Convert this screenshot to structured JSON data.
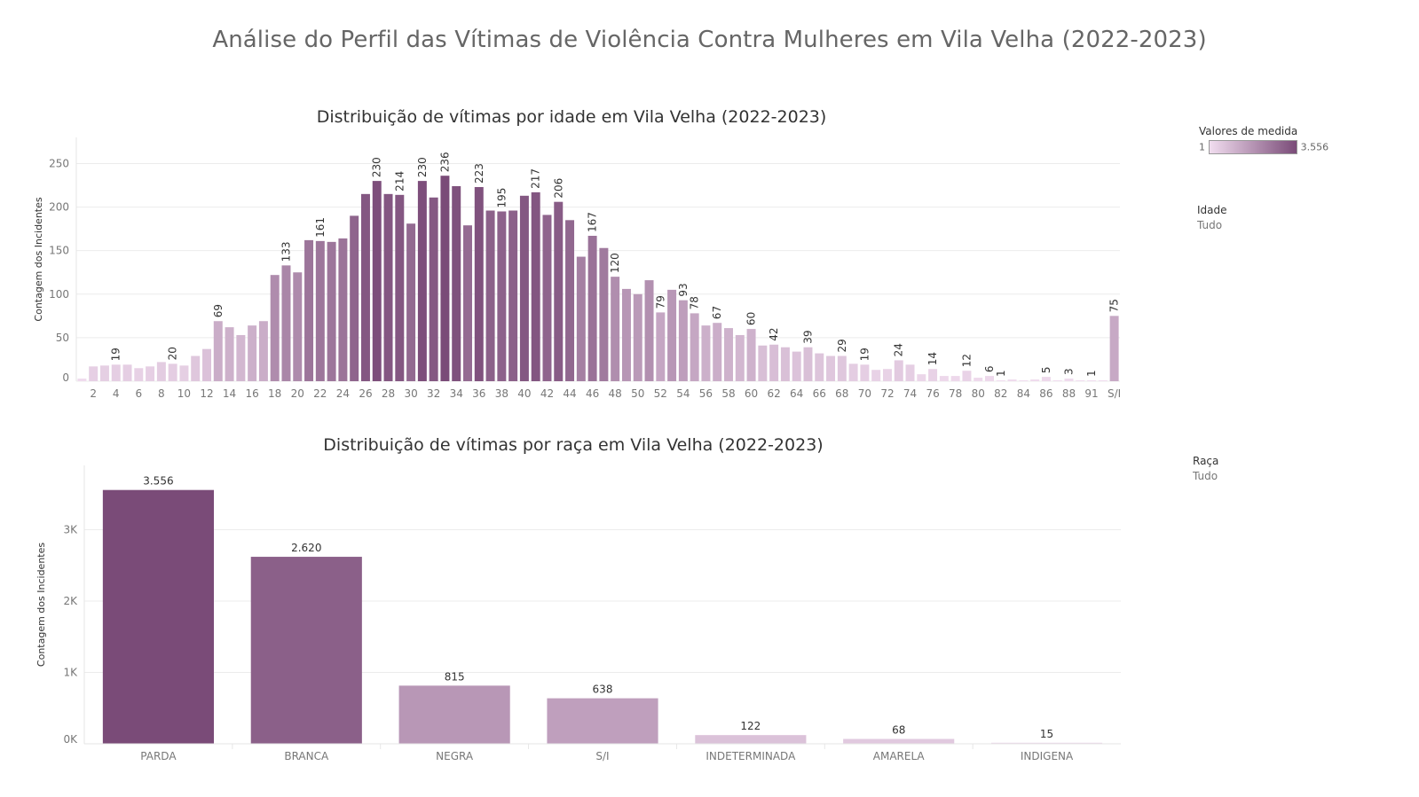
{
  "page": {
    "title": "Análise do Perfil das Vítimas de Violência Contra Mulheres em Vila Velha (2022-2023)"
  },
  "legend": {
    "measure_title": "Valores de medida",
    "min_label": "1",
    "max_label": "3.556",
    "color_low": "#f1ddef",
    "color_high": "#7a4b78"
  },
  "filters": {
    "age": {
      "title": "Idade",
      "value": "Tudo"
    },
    "race": {
      "title": "Raça",
      "value": "Tudo"
    }
  },
  "chart_data": [
    {
      "type": "bar",
      "title": "Distribuição de vítimas por idade em Vila Velha (2022-2023)",
      "xlabel": "",
      "ylabel": "Contagem dos Incidentes",
      "ylim": [
        0,
        280
      ],
      "yticks": [
        0,
        50,
        100,
        150,
        200,
        250
      ],
      "ytick_labels": [
        "0",
        "50",
        "100",
        "150",
        "200",
        "250"
      ],
      "grid": true,
      "categories": [
        "1",
        "2",
        "3",
        "4",
        "5",
        "6",
        "7",
        "8",
        "9",
        "10",
        "11",
        "12",
        "13",
        "14",
        "15",
        "16",
        "17",
        "18",
        "19",
        "20",
        "21",
        "22",
        "23",
        "24",
        "25",
        "26",
        "27",
        "28",
        "29",
        "30",
        "31",
        "32",
        "33",
        "34",
        "35",
        "36",
        "37",
        "38",
        "39",
        "40",
        "41",
        "42",
        "43",
        "44",
        "45",
        "46",
        "47",
        "48",
        "49",
        "50",
        "51",
        "52",
        "53",
        "54",
        "55",
        "56",
        "57",
        "58",
        "59",
        "60",
        "61",
        "62",
        "63",
        "64",
        "65",
        "66",
        "67",
        "68",
        "69",
        "70",
        "71",
        "72",
        "73",
        "74",
        "75",
        "76",
        "77",
        "78",
        "79",
        "80",
        "81",
        "82",
        "83",
        "84",
        "85",
        "86",
        "87",
        "88",
        "89",
        "91",
        "93",
        "S/I"
      ],
      "visible_ticks": [
        "2",
        "4",
        "6",
        "8",
        "10",
        "12",
        "14",
        "16",
        "18",
        "20",
        "22",
        "24",
        "26",
        "28",
        "30",
        "32",
        "34",
        "36",
        "38",
        "40",
        "42",
        "44",
        "46",
        "48",
        "50",
        "52",
        "54",
        "56",
        "58",
        "60",
        "62",
        "64",
        "66",
        "68",
        "70",
        "72",
        "74",
        "76",
        "78",
        "80",
        "82",
        "84",
        "86",
        "88",
        "91",
        "S/I"
      ],
      "values": [
        3,
        17,
        18,
        19,
        19,
        15,
        17,
        22,
        20,
        18,
        29,
        37,
        69,
        62,
        53,
        64,
        69,
        122,
        133,
        125,
        162,
        161,
        160,
        164,
        190,
        215,
        230,
        215,
        214,
        181,
        230,
        211,
        236,
        224,
        179,
        223,
        196,
        195,
        196,
        213,
        217,
        191,
        206,
        185,
        143,
        167,
        153,
        120,
        106,
        100,
        116,
        79,
        105,
        93,
        78,
        64,
        67,
        61,
        53,
        60,
        41,
        42,
        39,
        34,
        39,
        32,
        29,
        29,
        20,
        19,
        13,
        14,
        24,
        19,
        8,
        14,
        6,
        6,
        12,
        4,
        6,
        1,
        2,
        1,
        2,
        5,
        1,
        3,
        1,
        1,
        1,
        75
      ],
      "labeled_categories": [
        "4",
        "9",
        "13",
        "19",
        "22",
        "27",
        "29",
        "31",
        "33",
        "36",
        "38",
        "41",
        "43",
        "46",
        "48",
        "52",
        "54",
        "55",
        "57",
        "60",
        "62",
        "65",
        "68",
        "70",
        "73",
        "76",
        "79",
        "81",
        "82",
        "86",
        "88",
        "91",
        "S/I"
      ]
    },
    {
      "type": "bar",
      "title": "Distribuição de vítimas por raça em Vila Velha (2022-2023)",
      "xlabel": "",
      "ylabel": "Contagem dos Incidentes",
      "ylim": [
        0,
        3900
      ],
      "yticks": [
        0,
        1000,
        2000,
        3000
      ],
      "ytick_labels": [
        "0K",
        "1K",
        "2K",
        "3K"
      ],
      "grid": true,
      "categories": [
        "PARDA",
        "BRANCA",
        "NEGRA",
        "S/I",
        "INDETERMINADA",
        "AMARELA",
        "INDIGENA"
      ],
      "values": [
        3556,
        2620,
        815,
        638,
        122,
        68,
        15
      ],
      "value_labels": [
        "3.556",
        "2.620",
        "815",
        "638",
        "122",
        "68",
        "15"
      ]
    }
  ]
}
